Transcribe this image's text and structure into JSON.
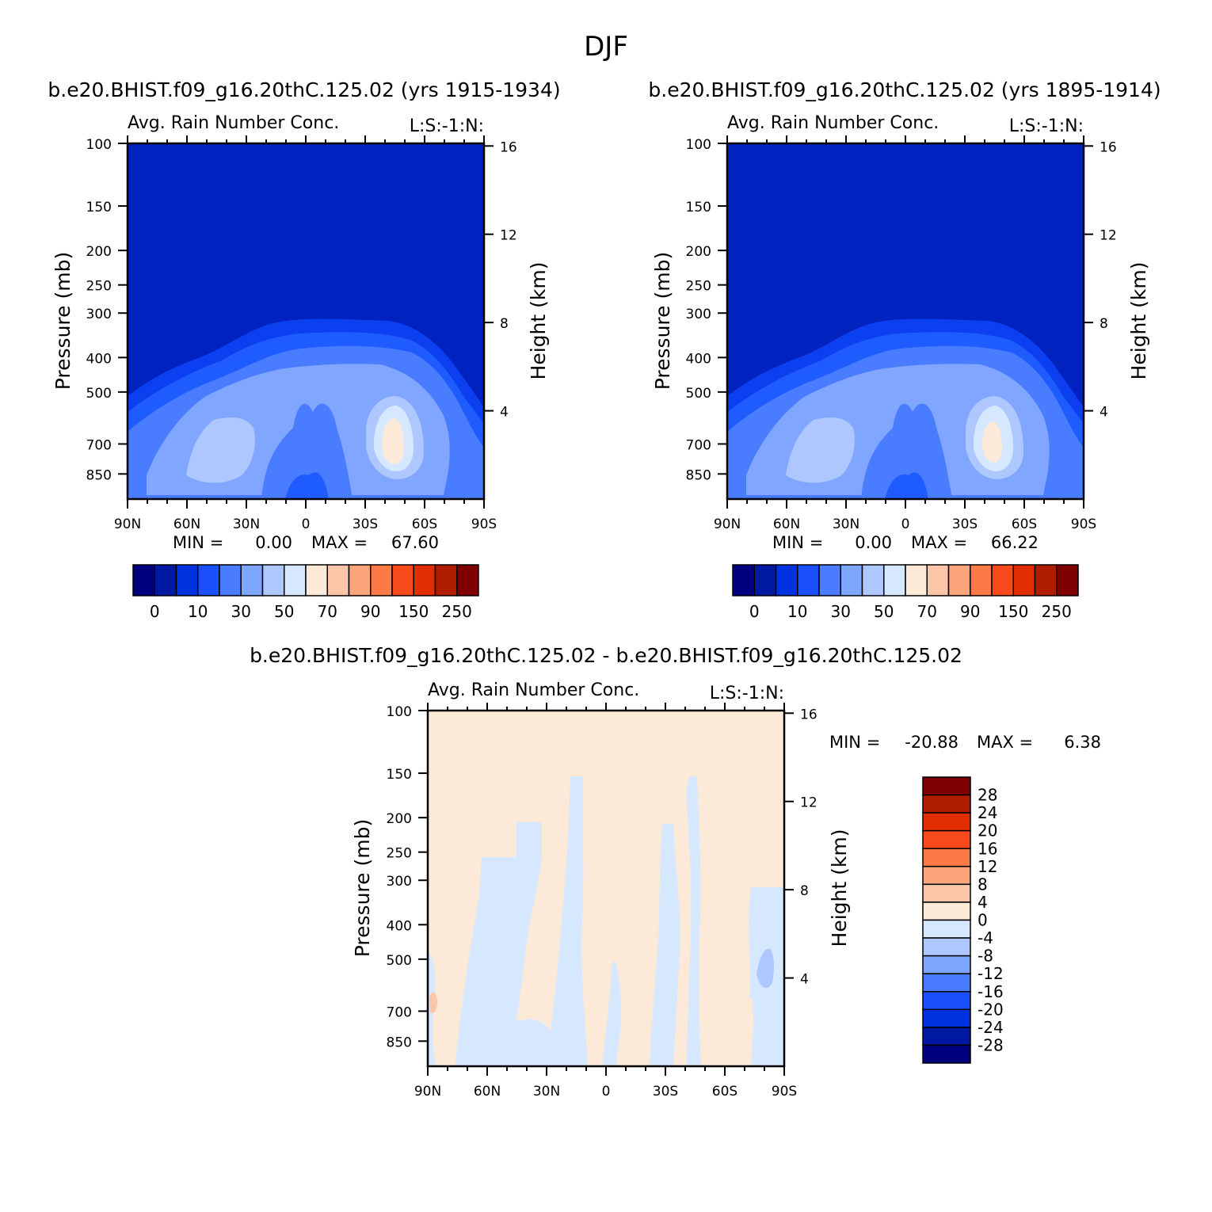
{
  "figure": {
    "title": "DJF"
  },
  "panels": [
    {
      "case_label": "b.e20.BHIST.f09_g16.20thC.125.02 (yrs 1915-1934)",
      "subtitle_left": "Avg. Rain Number Conc.",
      "subtitle_right": "L:S:-1:N:",
      "ylabel_left": "Pressure (mb)",
      "ylabel_right": "Height (km)",
      "stats": {
        "min_label": "MIN =",
        "min": "0.00",
        "max_label": "MAX =",
        "max": "67.60"
      }
    },
    {
      "case_label": "b.e20.BHIST.f09_g16.20thC.125.02 (yrs 1895-1914)",
      "subtitle_left": "Avg. Rain Number Conc.",
      "subtitle_right": "L:S:-1:N:",
      "ylabel_left": "Pressure (mb)",
      "ylabel_right": "Height (km)",
      "stats": {
        "min_label": "MIN =",
        "min": "0.00",
        "max_label": "MAX =",
        "max": "66.22"
      }
    },
    {
      "case_label": "b.e20.BHIST.f09_g16.20thC.125.02 - b.e20.BHIST.f09_g16.20thC.125.02",
      "subtitle_left": "Avg. Rain Number Conc.",
      "subtitle_right": "L:S:-1:N:",
      "ylabel_left": "Pressure (mb)",
      "ylabel_right": "Height (km)",
      "stats": {
        "min_label": "MIN =",
        "min": "-20.88",
        "max_label": "MAX =",
        "max": "6.38"
      }
    }
  ],
  "axes": {
    "x_ticks": [
      "90N",
      "60N",
      "30N",
      "0",
      "30S",
      "60S",
      "90S"
    ],
    "x_values": [
      90,
      60,
      30,
      0,
      -30,
      -60,
      -90
    ],
    "p_ticks": [
      100,
      150,
      200,
      250,
      300,
      400,
      500,
      700,
      850
    ],
    "p_range": [
      100,
      1000
    ],
    "height_ticks": [
      4,
      8,
      12,
      16
    ],
    "height_ticks_labels": [
      "4",
      "8",
      "12",
      "16"
    ]
  },
  "colorbar_abs": {
    "colors": [
      "#00007f",
      "#0019a3",
      "#0032e0",
      "#1a50ff",
      "#4a7cff",
      "#7fa6ff",
      "#aec8ff",
      "#d6e8ff",
      "#fde9d8",
      "#fdc6a8",
      "#fca57a",
      "#fc7a46",
      "#f84a1a",
      "#e02e00",
      "#b01c00",
      "#7f0000"
    ],
    "labels": [
      "0",
      "10",
      "30",
      "50",
      "70",
      "90",
      "150",
      "250"
    ]
  },
  "colorbar_diff": {
    "colors": [
      "#00007f",
      "#0019a3",
      "#0032e0",
      "#1a50ff",
      "#4a7cff",
      "#7fa6ff",
      "#aec8ff",
      "#d6e8ff",
      "#fde9d8",
      "#fdc6a8",
      "#fca57a",
      "#fc7a46",
      "#f84a1a",
      "#e02e00",
      "#b01c00",
      "#7f0000"
    ],
    "labels": [
      "28",
      "24",
      "20",
      "16",
      "12",
      "8",
      "4",
      "0",
      "-4",
      "-8",
      "-12",
      "-16",
      "-20",
      "-24",
      "-28"
    ]
  },
  "chart_data": [
    {
      "type": "heatmap",
      "title": "Avg. Rain Number Conc.",
      "subtitle": "b.e20.BHIST.f09_g16.20thC.125.02 (yrs 1915-1934)",
      "xlabel": "",
      "ylabel": "Pressure (mb)",
      "ylabel_right": "Height (km)",
      "x": [
        "90N",
        "60N",
        "30N",
        "0",
        "30S",
        "60S",
        "90S"
      ],
      "ylim": [
        1000,
        100
      ],
      "y_scale": "log-pressure",
      "min": 0.0,
      "max": 67.6,
      "contour_levels": [
        0,
        5,
        10,
        20,
        30,
        40,
        50,
        60,
        70,
        80,
        90,
        100,
        150,
        200,
        250
      ]
    },
    {
      "type": "heatmap",
      "title": "Avg. Rain Number Conc.",
      "subtitle": "b.e20.BHIST.f09_g16.20thC.125.02 (yrs 1895-1914)",
      "xlabel": "",
      "ylabel": "Pressure (mb)",
      "ylabel_right": "Height (km)",
      "x": [
        "90N",
        "60N",
        "30N",
        "0",
        "30S",
        "60S",
        "90S"
      ],
      "ylim": [
        1000,
        100
      ],
      "y_scale": "log-pressure",
      "min": 0.0,
      "max": 66.22,
      "contour_levels": [
        0,
        5,
        10,
        20,
        30,
        40,
        50,
        60,
        70,
        80,
        90,
        100,
        150,
        200,
        250
      ]
    },
    {
      "type": "heatmap",
      "title": "Avg. Rain Number Conc.",
      "subtitle": "b.e20.BHIST.f09_g16.20thC.125.02 - b.e20.BHIST.f09_g16.20thC.125.02",
      "xlabel": "",
      "ylabel": "Pressure (mb)",
      "ylabel_right": "Height (km)",
      "x": [
        "90N",
        "60N",
        "30N",
        "0",
        "30S",
        "60S",
        "90S"
      ],
      "ylim": [
        1000,
        100
      ],
      "y_scale": "log-pressure",
      "min": -20.88,
      "max": 6.38,
      "contour_levels": [
        -28,
        -24,
        -20,
        -16,
        -12,
        -8,
        -4,
        0,
        4,
        8,
        12,
        16,
        20,
        24,
        28
      ]
    }
  ]
}
